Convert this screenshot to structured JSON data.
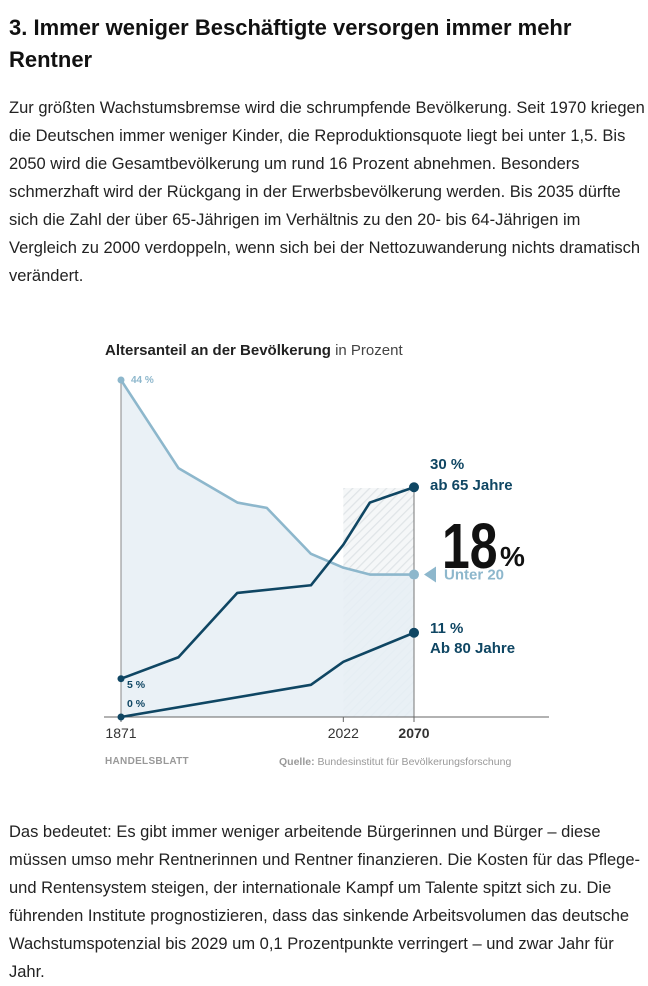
{
  "article": {
    "heading": "3. Immer weniger Beschäftigte versorgen immer mehr Rentner",
    "paragraph_1": "Zur größten Wachstumsbremse wird die schrumpfende Bevölkerung. Seit 1970 kriegen die Deutschen immer weniger Kinder, die Reproduktionsquote liegt bei unter 1,5. Bis 2050 wird die Gesamtbevölkerung um rund 16 Prozent abnehmen. Besonders schmerzhaft wird der Rückgang in der Erwerbsbevölkerung werden. Bis 2035 dürfte sich die Zahl der über 65-Jährigen im Verhältnis zu den 20- bis 64-Jährigen im Vergleich zu 2000 verdoppeln, wenn sich bei der Nettozuwanderung nichts dramatisch verändert.",
    "paragraph_2": "Das bedeutet: Es gibt immer weniger arbeitende Bürgerinnen und Bürger – diese müssen umso mehr Rentnerinnen und Rentner finanzieren. Die Kosten für das Pflege- und Rentensystem steigen, der internationale Kampf um Talente spitzt sich zu. Die führenden Institute prognostizieren, dass das sinkende Arbeitsvolumen das deutsche Wachstumspotenzial bis 2029 um 0,1 Prozentpunkte verringert – und zwar Jahr für Jahr."
  },
  "chart_footer": {
    "brand": "HANDELSBLATT",
    "source_label": "Quelle:",
    "source_text": "Bundesinstitut für Bevölkerungsforschung"
  },
  "chart_data": {
    "type": "area",
    "title": "Altersanteil an der Bevölkerung",
    "unit": "in Prozent",
    "x_tick_labels": [
      "1871",
      "2022",
      "2070"
    ],
    "projection_range": [
      2022,
      2070
    ],
    "ylim": [
      0,
      48
    ],
    "big_number": "18",
    "big_number_unit": "%",
    "series": [
      {
        "id": "unter20",
        "label": "Unter 20",
        "color": "#8db7cc",
        "fill": "#e6eff4",
        "start_label": "44 %",
        "x": [
          1871,
          1910,
          1950,
          1970,
          2000,
          2022,
          2040,
          2070
        ],
        "y": [
          44,
          32.5,
          28,
          27.3,
          21.3,
          19.5,
          18.6,
          18.6
        ]
      },
      {
        "id": "ab65",
        "label_line1": "30 %",
        "label_line2": "ab 65 Jahre",
        "color": "#0f4663",
        "start_label": "5 %",
        "x": [
          1871,
          1910,
          1950,
          2000,
          2022,
          2040,
          2070
        ],
        "y": [
          5.0,
          7.8,
          16.2,
          17.2,
          22.5,
          28.0,
          30.0
        ]
      },
      {
        "id": "ab80",
        "label_line1": "11 %",
        "label_line2": "Ab 80 Jahre",
        "color": "#0f4663",
        "start_label": "0 %",
        "x": [
          1871,
          2000,
          2022,
          2070
        ],
        "y": [
          0,
          4.2,
          7.2,
          11.0
        ]
      }
    ]
  }
}
